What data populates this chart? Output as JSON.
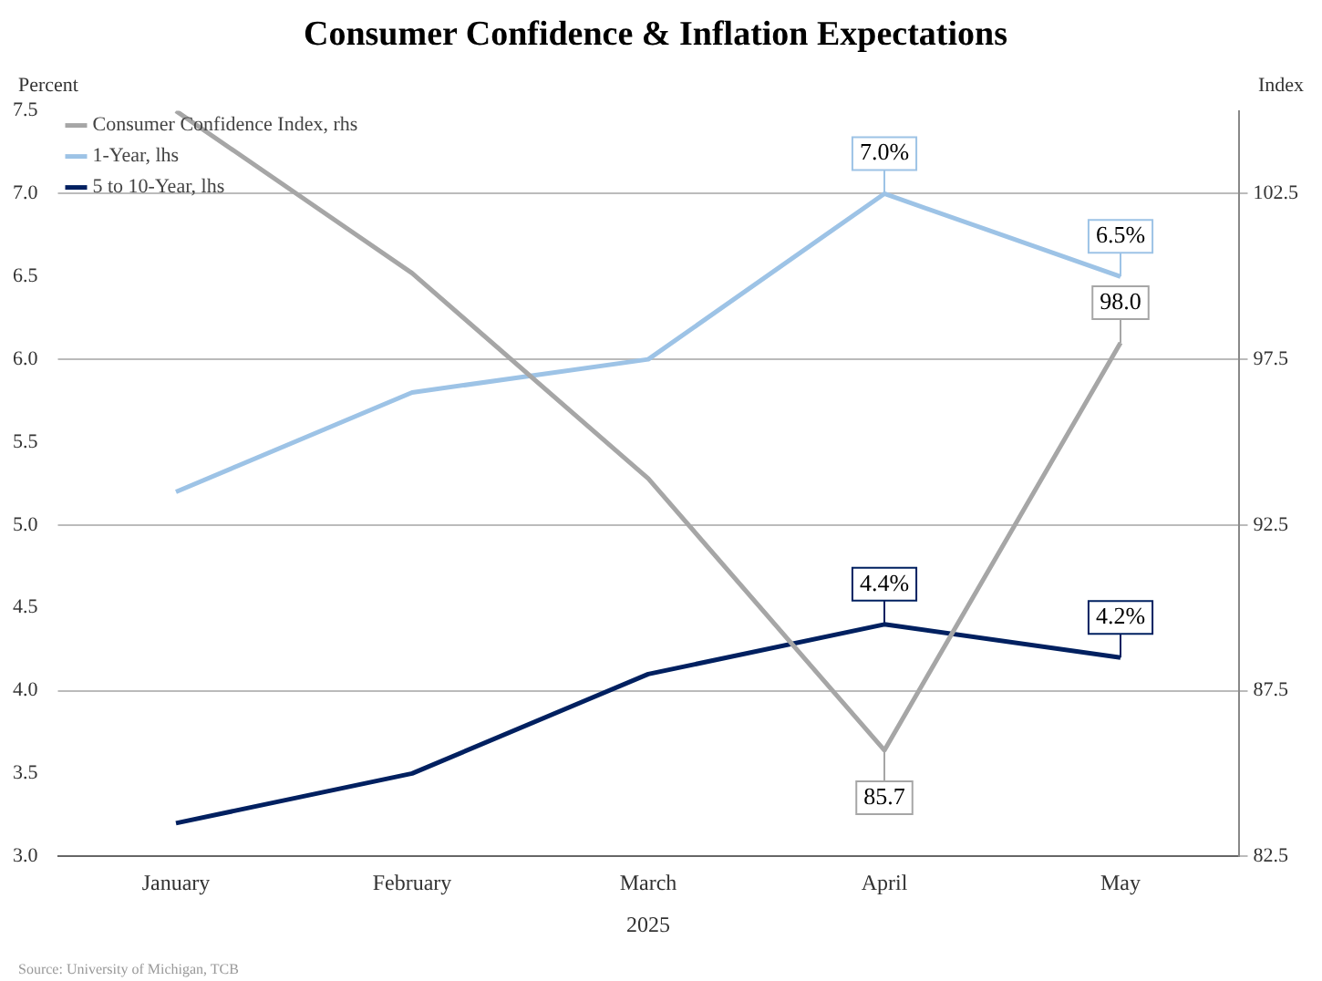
{
  "chart_data": {
    "type": "line",
    "title": "Consumer Confidence & Inflation Expectations",
    "xlabel": "2025",
    "ylabel": "Percent",
    "y2label": "Index",
    "categories": [
      "January",
      "February",
      "March",
      "April",
      "May"
    ],
    "series": [
      {
        "name": "Consumer Confidence Index, rhs",
        "color": "#a6a6a6",
        "axis": "y2",
        "values": [
          105.0,
          100.1,
          93.9,
          85.7,
          98.0
        ],
        "value_labels": [
          null,
          null,
          null,
          "85.7",
          "98.0"
        ]
      },
      {
        "name": "1-Year, lhs",
        "color": "#9dc3e6",
        "values": [
          5.2,
          5.8,
          6.0,
          7.0,
          6.5
        ],
        "value_labels": [
          null,
          null,
          null,
          "7.0%",
          "6.5%"
        ]
      },
      {
        "name": "5 to 10-Year, lhs",
        "color": "#002060",
        "values": [
          3.2,
          3.5,
          4.1,
          4.4,
          4.2
        ],
        "value_labels": [
          null,
          null,
          null,
          "4.4%",
          "4.2%"
        ]
      }
    ],
    "ylim": [
      3.0,
      7.5
    ],
    "yticks": [
      {
        "value": 3,
        "label": "3.0"
      },
      {
        "value": 3.5,
        "label": "3.5"
      },
      {
        "value": 4,
        "label": "4.0"
      },
      {
        "value": 4.5,
        "label": "4.5"
      },
      {
        "value": 5,
        "label": "5.0"
      },
      {
        "value": 5.5,
        "label": "5.5"
      },
      {
        "value": 6,
        "label": "6.0"
      },
      {
        "value": 6.5,
        "label": "6.5"
      },
      {
        "value": 7,
        "label": "7.0"
      },
      {
        "value": 7.5,
        "label": "7.5"
      }
    ],
    "y2lim": [
      82.5,
      105
    ],
    "y2ticks": [
      82.5,
      87.5,
      92.5,
      97.5,
      102.5
    ],
    "grid": "y",
    "legend": "top left",
    "marker": "none",
    "line_style": "solid",
    "annotations": [
      "Source: University of Michigan, TCB"
    ]
  }
}
